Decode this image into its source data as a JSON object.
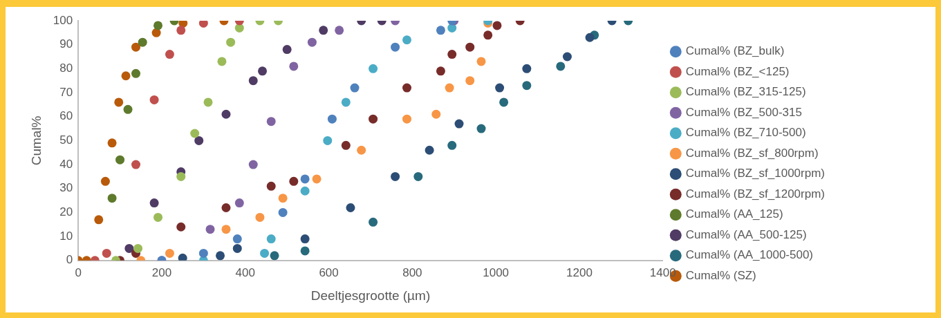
{
  "chart_data": {
    "type": "scatter",
    "xlabel": "Deeltjesgrootte (µm)",
    "ylabel": "Cumal%",
    "xlim": [
      0,
      1400
    ],
    "xticks": [
      0,
      200,
      400,
      600,
      800,
      1000,
      1200,
      1400
    ],
    "ylim": [
      0,
      100
    ],
    "yticks": [
      0,
      10,
      20,
      30,
      40,
      50,
      60,
      70,
      80,
      90,
      100
    ],
    "grid": false,
    "legend": "right",
    "marker": "circle",
    "series": [
      {
        "name": "Cumal% (BZ_bulk)",
        "color": "#4f81bd",
        "x": [
          200,
          300,
          381,
          490,
          543,
          608,
          662,
          759,
          868,
          895
        ],
        "values": [
          0,
          3,
          9,
          20,
          34,
          59,
          72,
          89,
          96,
          100
        ]
      },
      {
        "name": "Cumal% (BZ_<125)",
        "color": "#c0504d",
        "x": [
          40,
          68,
          138,
          182,
          219,
          246,
          300,
          386
        ],
        "values": [
          0,
          3,
          40,
          67,
          86,
          96,
          99,
          100
        ]
      },
      {
        "name": "Cumal% (BZ_315-125)",
        "color": "#9bbb59",
        "x": [
          90,
          143,
          191,
          246,
          279,
          311,
          344,
          365,
          386,
          435,
          479
        ],
        "values": [
          0,
          5,
          18,
          35,
          53,
          66,
          83,
          91,
          97,
          100,
          100
        ]
      },
      {
        "name": "Cumal% (BZ_500-315",
        "color": "#8064a2",
        "x": [
          200,
          316,
          386,
          419,
          462,
          516,
          560,
          625,
          759,
          900
        ],
        "values": [
          0,
          13,
          24,
          40,
          58,
          81,
          91,
          96,
          100,
          100
        ]
      },
      {
        "name": "Cumal% (BZ_710-500)",
        "color": "#4bacc6",
        "x": [
          300,
          446,
          462,
          543,
          597,
          641,
          706,
          787,
          895,
          981
        ],
        "values": [
          0,
          3,
          9,
          29,
          50,
          66,
          80,
          92,
          97,
          100
        ]
      },
      {
        "name": "Cumal% (BZ_sf_800rpm)",
        "color": "#f79646",
        "x": [
          150,
          219,
          354,
          435,
          490,
          571,
          678,
          787,
          857,
          889,
          938,
          965,
          981
        ],
        "values": [
          0,
          3,
          13,
          18,
          26,
          34,
          46,
          59,
          61,
          72,
          75,
          83,
          99
        ]
      },
      {
        "name": "Cumal% (BZ_sf_1000rpm)",
        "color": "#2c4d75",
        "x": [
          250,
          340,
          381,
          543,
          652,
          759,
          841,
          912,
          1009,
          1074,
          1171,
          1225,
          1278
        ],
        "values": [
          1,
          2,
          5,
          9,
          22,
          35,
          46,
          57,
          72,
          80,
          85,
          93,
          100
        ]
      },
      {
        "name": "Cumal% (BZ_sf_1200rpm)",
        "color": "#772c2a",
        "x": [
          100,
          138,
          246,
          354,
          462,
          516,
          641,
          706,
          787,
          868,
          895,
          938,
          981,
          1003,
          1058
        ],
        "values": [
          0,
          3,
          14,
          22,
          31,
          33,
          48,
          59,
          72,
          79,
          86,
          89,
          94,
          98,
          100
        ]
      },
      {
        "name": "Cumal% (AA_125)",
        "color": "#5e7a2c",
        "x": [
          81,
          100,
          119,
          138,
          154,
          191,
          230
        ],
        "values": [
          26,
          42,
          63,
          78,
          91,
          98,
          100
        ]
      },
      {
        "name": "Cumal% (AA_500-125)",
        "color": "#4f3b64",
        "x": [
          122,
          182,
          246,
          289,
          354,
          419,
          441,
          500,
          587,
          678,
          727
        ],
        "values": [
          5,
          24,
          37,
          50,
          61,
          75,
          79,
          88,
          96,
          100,
          100
        ]
      },
      {
        "name": "Cumal% (AA_1000-500)",
        "color": "#276a7c",
        "x": [
          470,
          543,
          706,
          814,
          895,
          965,
          1019,
          1074,
          1155,
          1236,
          1317
        ],
        "values": [
          2,
          4,
          16,
          35,
          48,
          55,
          66,
          73,
          81,
          94,
          100
        ]
      },
      {
        "name": "Cumal% (SZ)",
        "color": "#b85a0a",
        "x": [
          0,
          20,
          49,
          65,
          81,
          97,
          114,
          138,
          187,
          251,
          349
        ],
        "values": [
          0,
          0,
          17,
          33,
          49,
          66,
          77,
          89,
          95,
          99,
          100
        ]
      }
    ]
  }
}
